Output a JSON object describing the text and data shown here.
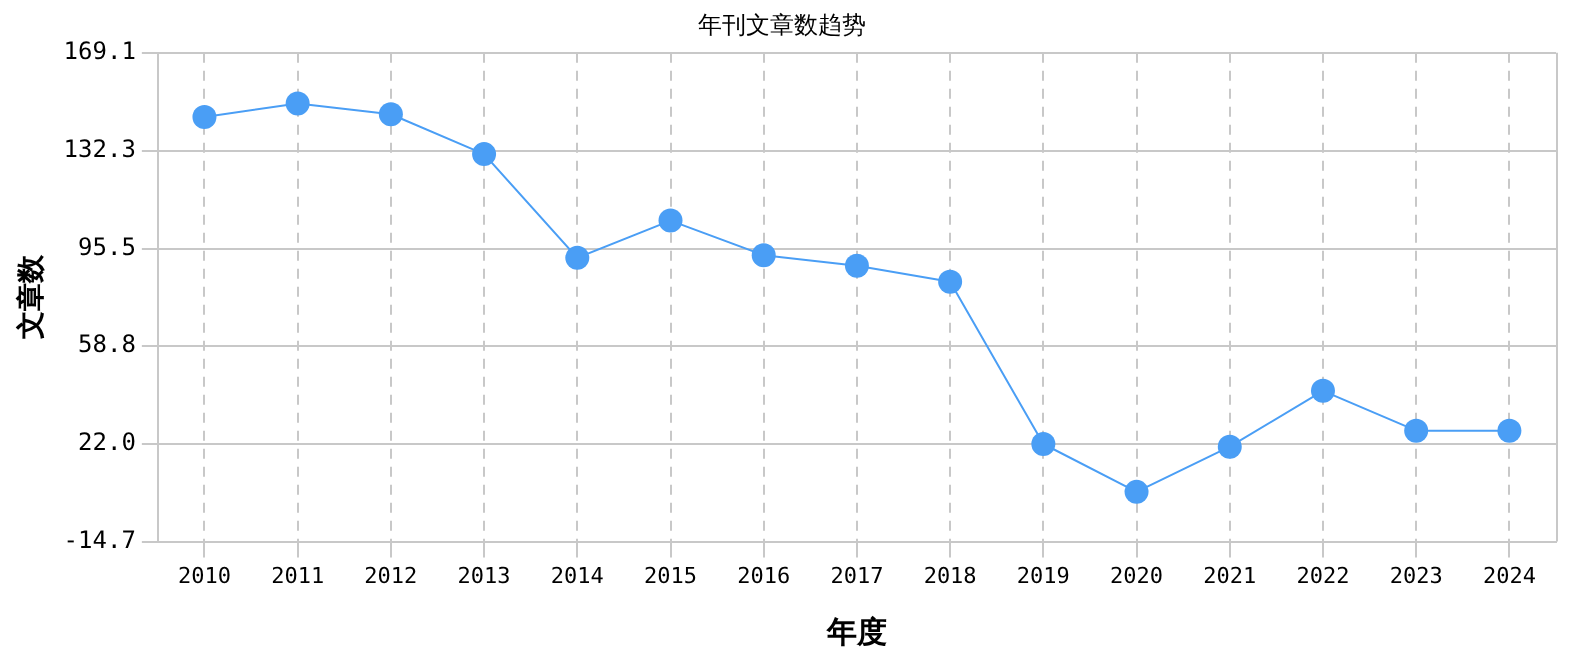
{
  "chart_data": {
    "type": "line",
    "title": "年刊文章数趋势",
    "xlabel": "年度",
    "ylabel": "文章数",
    "categories": [
      "2010",
      "2011",
      "2012",
      "2013",
      "2014",
      "2015",
      "2016",
      "2017",
      "2018",
      "2019",
      "2020",
      "2021",
      "2022",
      "2023",
      "2024"
    ],
    "series": [
      {
        "color": "#4a9ef5",
        "values": [
          145,
          150,
          146,
          131,
          92,
          106,
          93,
          89,
          83,
          22,
          4,
          21,
          42,
          27,
          27
        ]
      }
    ],
    "ylim": [
      -14.7,
      169.1
    ],
    "yticks": [
      -14.7,
      {
        "value": 22,
        "label": "22.0"
      },
      58.8,
      95.5,
      132.3,
      169.1
    ],
    "grid": true,
    "legend": false,
    "marker": "circle",
    "line_style": "solid"
  }
}
